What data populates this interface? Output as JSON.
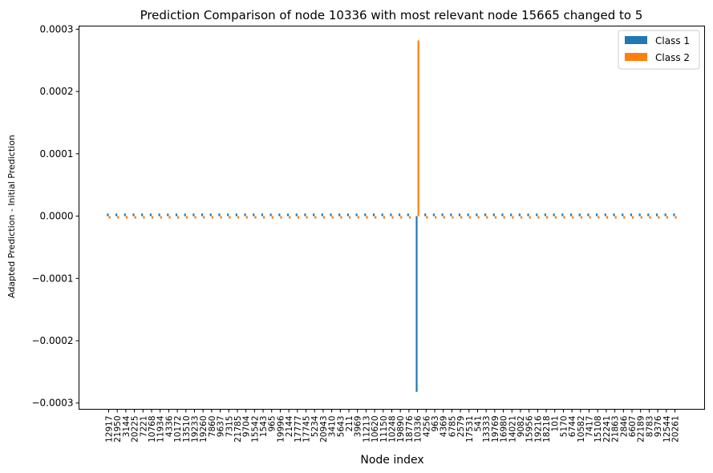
{
  "chart_data": {
    "type": "bar",
    "title": "Prediction Comparison of node 10336 with most relevant node 15665 changed to 5",
    "xlabel": "Node index",
    "ylabel": "Adapted Prediction - Initial Prediction",
    "ylim": [
      -0.00031,
      0.000305
    ],
    "yticks": [
      {
        "value": 0.0003,
        "label": "0.0003"
      },
      {
        "value": 0.0002,
        "label": "0.0002"
      },
      {
        "value": 0.0001,
        "label": "0.0001"
      },
      {
        "value": 0.0,
        "label": "0.0000"
      },
      {
        "value": -0.0001,
        "label": "−0.0001"
      },
      {
        "value": -0.0002,
        "label": "−0.0002"
      },
      {
        "value": -0.0003,
        "label": "−0.0003"
      }
    ],
    "categories": [
      "12917",
      "21950",
      "3144",
      "20225",
      "7221",
      "10768",
      "11934",
      "4336",
      "10172",
      "13510",
      "19233",
      "19260",
      "7860",
      "9637",
      "7315",
      "21785",
      "9704",
      "15542",
      "1543",
      "965",
      "19996",
      "2144",
      "17777",
      "17745",
      "5234",
      "20943",
      "3410",
      "5643",
      "211",
      "3969",
      "11213",
      "10620",
      "11150",
      "10248",
      "19890",
      "18776",
      "10336",
      "4256",
      "963",
      "4369",
      "6785",
      "2579",
      "17531",
      "541",
      "13333",
      "19769",
      "16980",
      "14021",
      "9082",
      "15956",
      "19216",
      "18218",
      "101",
      "5170",
      "6744",
      "10582",
      "7417",
      "15108",
      "22241",
      "21863",
      "2846",
      "6607",
      "22189",
      "8783",
      "9376",
      "12544",
      "20261"
    ],
    "series": [
      {
        "name": "Class 1",
        "color": "#1f77b4",
        "values": [
          4e-06,
          4e-06,
          4e-06,
          4e-06,
          4e-06,
          4e-06,
          4e-06,
          4e-06,
          4e-06,
          4e-06,
          4e-06,
          4e-06,
          4e-06,
          4e-06,
          4e-06,
          4e-06,
          4e-06,
          4e-06,
          4e-06,
          4e-06,
          4e-06,
          4e-06,
          4e-06,
          4e-06,
          4e-06,
          4e-06,
          4e-06,
          4e-06,
          4e-06,
          4e-06,
          4e-06,
          4e-06,
          4e-06,
          4e-06,
          4e-06,
          4e-06,
          -0.000282,
          4e-06,
          4e-06,
          4e-06,
          4e-06,
          4e-06,
          4e-06,
          4e-06,
          4e-06,
          4e-06,
          4e-06,
          4e-06,
          4e-06,
          4e-06,
          4e-06,
          4e-06,
          4e-06,
          4e-06,
          4e-06,
          4e-06,
          4e-06,
          4e-06,
          4e-06,
          4e-06,
          4e-06,
          4e-06,
          4e-06,
          4e-06,
          4e-06,
          4e-06,
          4e-06
        ]
      },
      {
        "name": "Class 2",
        "color": "#ff7f0e",
        "values": [
          -4e-06,
          -4e-06,
          -4e-06,
          -4e-06,
          -4e-06,
          -4e-06,
          -4e-06,
          -4e-06,
          -4e-06,
          -4e-06,
          -4e-06,
          -4e-06,
          -4e-06,
          -4e-06,
          -4e-06,
          -4e-06,
          -4e-06,
          -4e-06,
          -4e-06,
          -4e-06,
          -4e-06,
          -4e-06,
          -4e-06,
          -4e-06,
          -4e-06,
          -4e-06,
          -4e-06,
          -4e-06,
          -4e-06,
          -4e-06,
          -4e-06,
          -4e-06,
          -4e-06,
          -4e-06,
          -4e-06,
          -4e-06,
          0.000282,
          -4e-06,
          -4e-06,
          -4e-06,
          -4e-06,
          -4e-06,
          -4e-06,
          -4e-06,
          -4e-06,
          -4e-06,
          -4e-06,
          -4e-06,
          -4e-06,
          -4e-06,
          -4e-06,
          -4e-06,
          -4e-06,
          -4e-06,
          -4e-06,
          -4e-06,
          -4e-06,
          -4e-06,
          -4e-06,
          -4e-06,
          -4e-06,
          -4e-06,
          -4e-06,
          -4e-06,
          -4e-06,
          -4e-06,
          -4e-06
        ]
      }
    ],
    "legend": "top-right",
    "grid": false
  }
}
